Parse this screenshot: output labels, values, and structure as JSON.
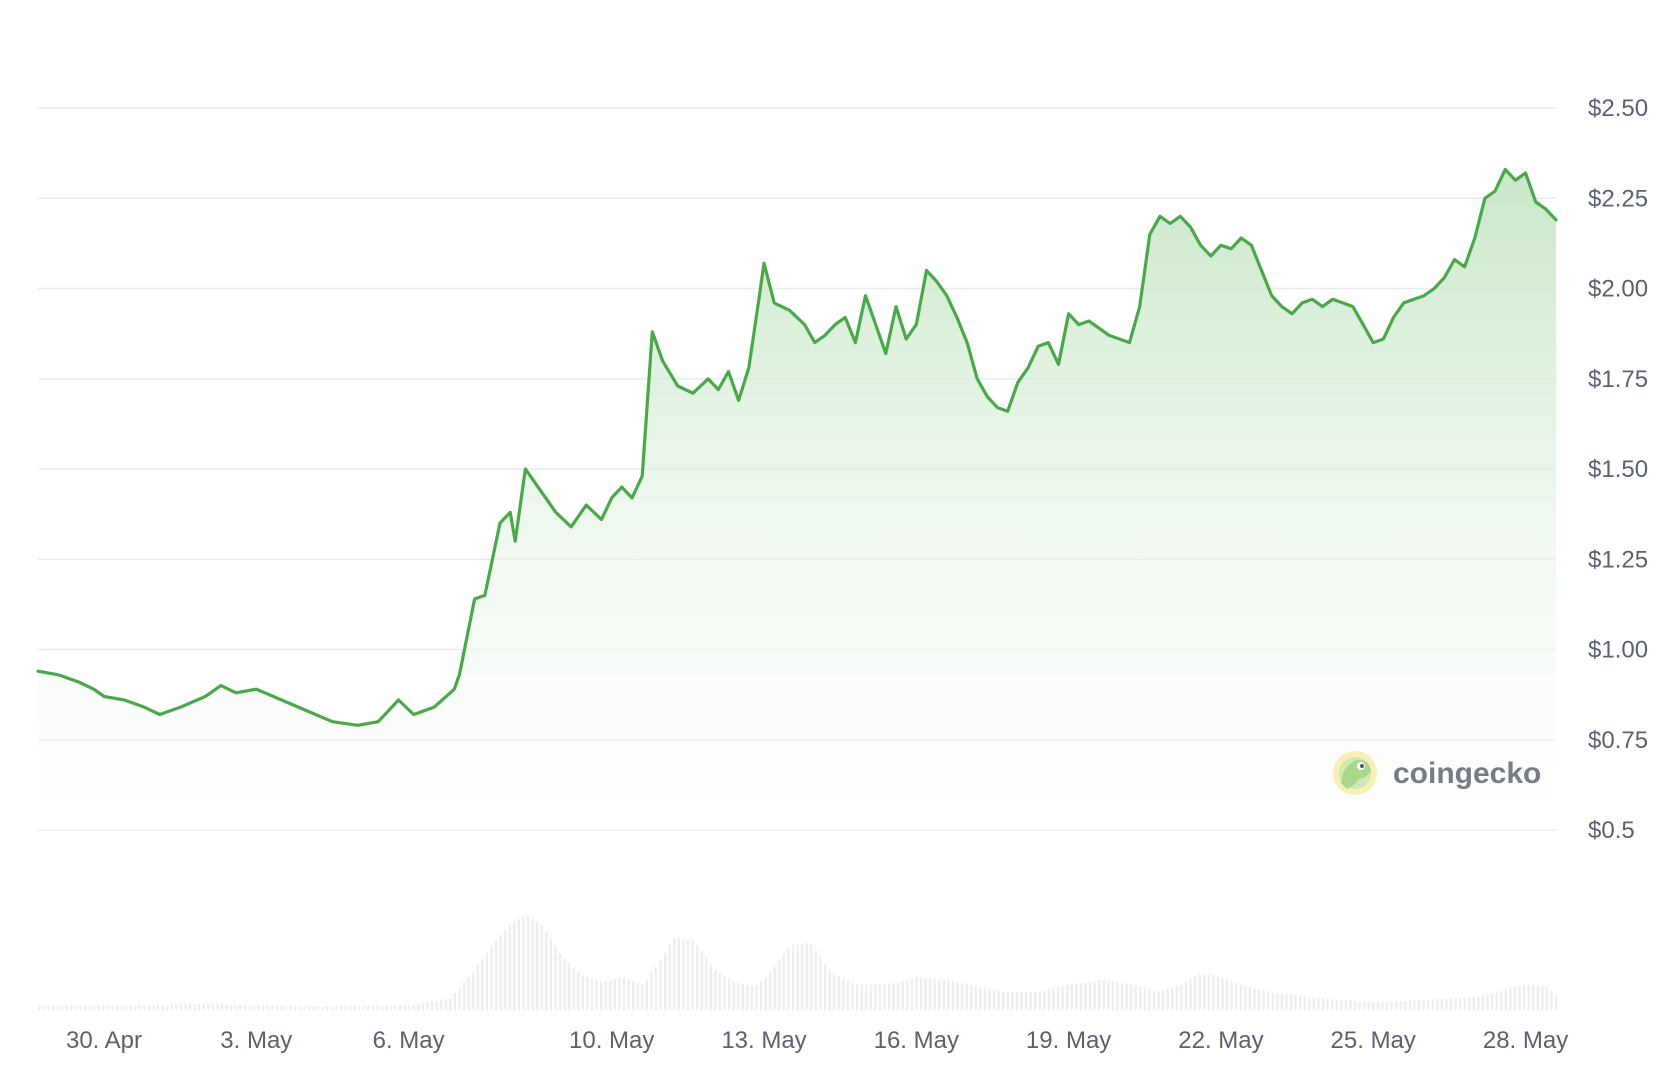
{
  "chart_data": {
    "type": "area",
    "title": "",
    "xlabel": "",
    "ylabel": "",
    "x_tick_labels": [
      "30. Apr",
      "3. May",
      "6. May",
      "10. May",
      "13. May",
      "16. May",
      "19. May",
      "22. May",
      "25. May",
      "28. May"
    ],
    "y_tick_labels": [
      "$2.50",
      "$2.25",
      "$2.00",
      "$1.75",
      "$1.50",
      "$1.25",
      "$1.00",
      "$0.75",
      "$0.5"
    ],
    "y_ticks": [
      2.5,
      2.25,
      2.0,
      1.75,
      1.5,
      1.25,
      1.0,
      0.75,
      0.5
    ],
    "ylim": [
      0.5,
      2.5
    ],
    "x_range_days": [
      -1.3,
      28.6
    ],
    "x_tick_days": [
      0,
      3,
      6,
      10,
      13,
      16,
      19,
      22,
      25,
      28
    ],
    "grid": true,
    "legend": "none",
    "series": [
      {
        "values_description": "price (USD); x in days since 29 Apr 00:00",
        "x": [
          -1.3,
          -0.9,
          -0.5,
          -0.2,
          0.0,
          0.4,
          0.8,
          1.1,
          1.5,
          2.0,
          2.3,
          2.6,
          3.0,
          3.5,
          4.0,
          4.5,
          5.0,
          5.4,
          5.8,
          6.1,
          6.5,
          6.9,
          7.0,
          7.3,
          7.5,
          7.8,
          8.0,
          8.1,
          8.3,
          8.6,
          8.9,
          9.2,
          9.5,
          9.8,
          10.0,
          10.2,
          10.4,
          10.6,
          10.8,
          11.0,
          11.3,
          11.6,
          11.9,
          12.1,
          12.3,
          12.5,
          12.7,
          12.9,
          13.0,
          13.2,
          13.5,
          13.8,
          14.0,
          14.2,
          14.4,
          14.6,
          14.8,
          15.0,
          15.2,
          15.4,
          15.6,
          15.8,
          16.0,
          16.2,
          16.4,
          16.6,
          16.8,
          17.0,
          17.2,
          17.4,
          17.6,
          17.8,
          18.0,
          18.2,
          18.4,
          18.6,
          18.8,
          19.0,
          19.2,
          19.4,
          19.6,
          19.8,
          20.0,
          20.2,
          20.4,
          20.6,
          20.8,
          21.0,
          21.2,
          21.4,
          21.6,
          21.8,
          22.0,
          22.2,
          22.4,
          22.6,
          22.8,
          23.0,
          23.2,
          23.4,
          23.6,
          23.8,
          24.0,
          24.2,
          24.4,
          24.6,
          24.8,
          25.0,
          25.2,
          25.4,
          25.6,
          25.8,
          26.0,
          26.2,
          26.4,
          26.6,
          26.8,
          27.0,
          27.2,
          27.4,
          27.6,
          27.8,
          28.0,
          28.2,
          28.4,
          28.6
        ],
        "y": [
          0.94,
          0.93,
          0.91,
          0.89,
          0.87,
          0.86,
          0.84,
          0.82,
          0.84,
          0.87,
          0.9,
          0.88,
          0.89,
          0.86,
          0.83,
          0.8,
          0.79,
          0.8,
          0.86,
          0.82,
          0.84,
          0.89,
          0.93,
          1.14,
          1.15,
          1.35,
          1.38,
          1.3,
          1.5,
          1.44,
          1.38,
          1.34,
          1.4,
          1.36,
          1.42,
          1.45,
          1.42,
          1.48,
          1.88,
          1.8,
          1.73,
          1.71,
          1.75,
          1.72,
          1.77,
          1.69,
          1.78,
          1.97,
          2.07,
          1.96,
          1.94,
          1.9,
          1.85,
          1.87,
          1.9,
          1.92,
          1.85,
          1.98,
          1.9,
          1.82,
          1.95,
          1.86,
          1.9,
          2.05,
          2.02,
          1.98,
          1.92,
          1.85,
          1.75,
          1.7,
          1.67,
          1.66,
          1.74,
          1.78,
          1.84,
          1.85,
          1.79,
          1.93,
          1.9,
          1.91,
          1.89,
          1.87,
          1.86,
          1.85,
          1.95,
          2.15,
          2.2,
          2.18,
          2.2,
          2.17,
          2.12,
          2.09,
          2.12,
          2.11,
          2.14,
          2.12,
          2.05,
          1.98,
          1.95,
          1.93,
          1.96,
          1.97,
          1.95,
          1.97,
          1.96,
          1.95,
          1.9,
          1.85,
          1.86,
          1.92,
          1.96,
          1.97,
          1.98,
          2.0,
          2.03,
          2.08,
          2.06,
          2.14,
          2.25,
          2.27,
          2.33,
          2.3,
          2.32,
          2.24,
          2.22,
          2.19
        ]
      }
    ],
    "volume_x": [
      -1.3,
      0.0,
      2.0,
      4.0,
      6.0,
      6.8,
      7.2,
      7.6,
      8.0,
      8.3,
      8.6,
      9.0,
      9.4,
      9.8,
      10.2,
      10.6,
      10.9,
      11.2,
      11.6,
      12.0,
      12.4,
      12.8,
      13.1,
      13.5,
      13.9,
      14.3,
      14.8,
      15.4,
      16.0,
      16.6,
      17.2,
      17.8,
      18.4,
      19.0,
      19.6,
      20.2,
      20.8,
      21.2,
      21.6,
      22.0,
      22.5,
      23.0,
      23.6,
      24.2,
      24.8,
      25.4,
      26.0,
      26.6,
      27.2,
      27.6,
      28.0,
      28.4,
      28.6
    ],
    "volume_y": [
      4,
      4,
      5,
      3,
      4,
      10,
      30,
      55,
      75,
      82,
      74,
      46,
      30,
      24,
      28,
      22,
      40,
      62,
      60,
      35,
      24,
      20,
      32,
      56,
      58,
      32,
      22,
      22,
      28,
      26,
      20,
      15,
      16,
      22,
      26,
      22,
      16,
      22,
      32,
      28,
      20,
      15,
      12,
      9,
      7,
      7,
      9,
      10,
      12,
      18,
      22,
      20,
      12
    ]
  },
  "watermark": {
    "text": "coingecko"
  },
  "colors": {
    "line": "#4aa84a",
    "area_top": "#bfe3bf",
    "grid": "#e9ecef",
    "tick_text": "#5a6272",
    "volume": "#eceef1"
  }
}
